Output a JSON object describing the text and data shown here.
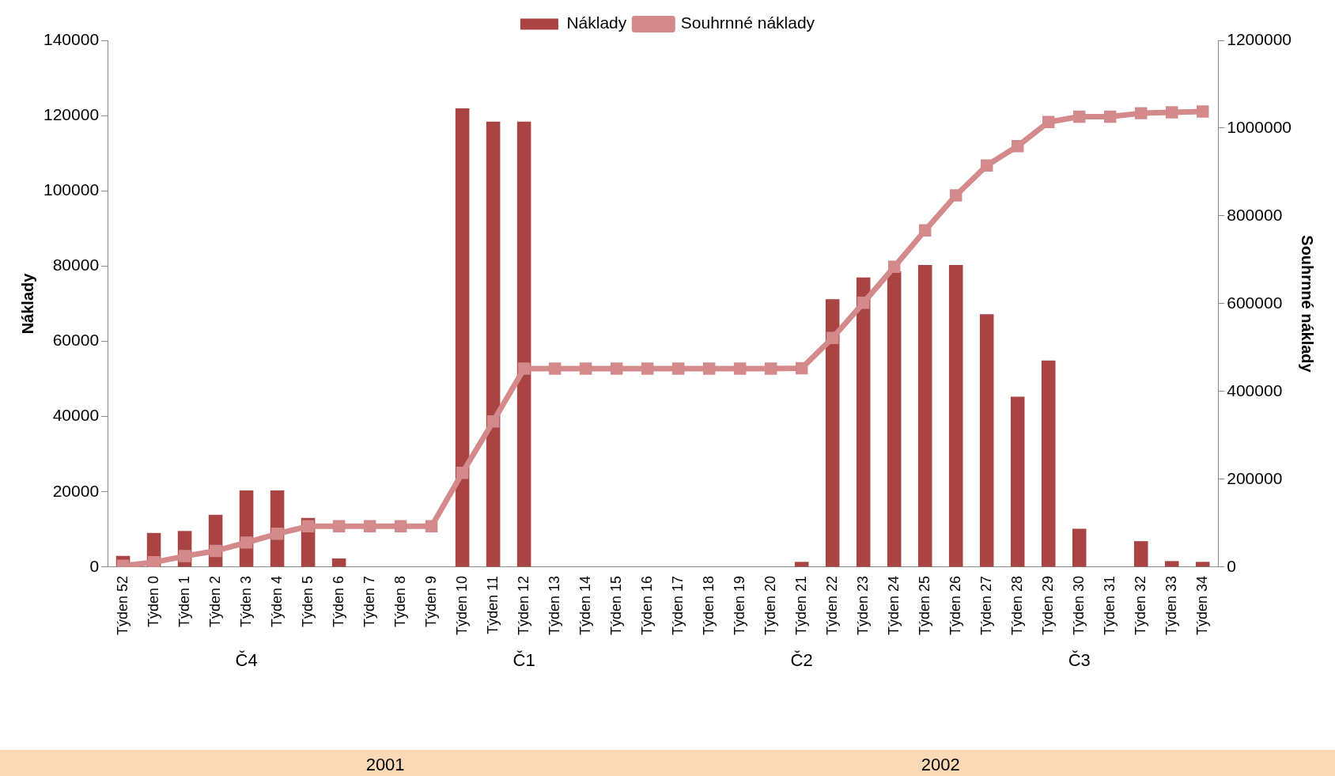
{
  "chart_data": {
    "type": "bar",
    "ylabel": "Náklady",
    "y2label": "Souhrnné náklady",
    "legend": "top",
    "marker": "square",
    "grid": false,
    "categories": [
      "Týden 52",
      "Týden 0",
      "Týden 1",
      "Týden 2",
      "Týden 3",
      "Týden 4",
      "Týden 5",
      "Týden 6",
      "Týden 7",
      "Týden 8",
      "Týden 9",
      "Týden 10",
      "Týden 11",
      "Týden 12",
      "Týden 13",
      "Týden 14",
      "Týden 15",
      "Týden 16",
      "Týden 17",
      "Týden 18",
      "Týden 19",
      "Týden 20",
      "Týden 21",
      "Týden 22",
      "Týden 23",
      "Týden 24",
      "Týden 25",
      "Týden 26",
      "Týden 27",
      "Týden 28",
      "Týden 29",
      "Týden 30",
      "Týden 31",
      "Týden 32",
      "Týden 33",
      "Týden 34"
    ],
    "series": [
      {
        "name": "Náklady",
        "color": "#a94442",
        "values": [
          3000,
          9100,
          9600,
          13900,
          20400,
          20400,
          13100,
          2300,
          0,
          0,
          0,
          121900,
          118400,
          118400,
          0,
          0,
          0,
          0,
          0,
          0,
          0,
          0,
          1400,
          71200,
          77000,
          78600,
          80300,
          80300,
          67200,
          45300,
          54900,
          10200,
          0,
          6900,
          1600,
          1400
        ]
      },
      {
        "name": "Souhrnné náklady",
        "type": "line",
        "axis": "y2",
        "color": "#d48a8a",
        "values": [
          3000,
          11000,
          25000,
          37000,
          56000,
          76000,
          93000,
          93000,
          93000,
          93000,
          93000,
          215000,
          332000,
          452000,
          452000,
          452000,
          452000,
          452000,
          452000,
          452000,
          452000,
          452000,
          453000,
          522000,
          602000,
          684000,
          767000,
          847000,
          915000,
          959000,
          1014000,
          1026000,
          1026000,
          1034000,
          1036000,
          1038000
        ]
      }
    ],
    "ylim": [
      0,
      140000
    ],
    "yticks": [
      0,
      20000,
      40000,
      60000,
      80000,
      100000,
      120000,
      140000
    ],
    "y2lim": [
      0,
      1200000
    ],
    "y2ticks": [
      0,
      200000,
      400000,
      600000,
      800000,
      1000000,
      1200000
    ],
    "annotations": [
      "Č4",
      "Č1",
      "Č2",
      "Č3",
      "2001",
      "2002"
    ]
  }
}
